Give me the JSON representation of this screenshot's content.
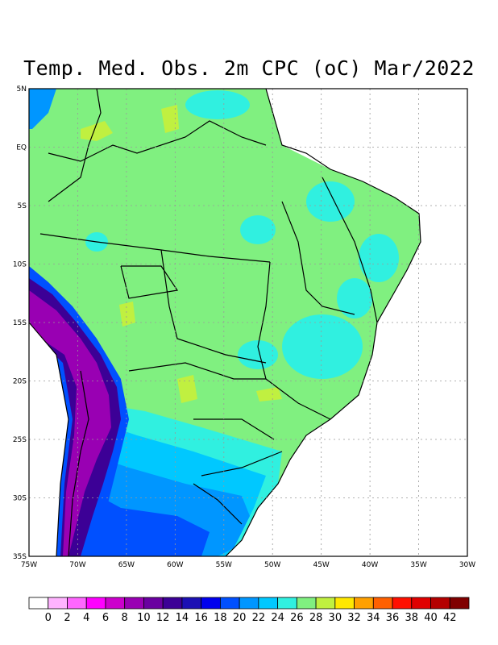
{
  "title": "Temp. Med. Obs. 2m CPC (oC) Mar/2022",
  "map": {
    "lat_labels": [
      "5N",
      "EQ",
      "5S",
      "10S",
      "15S",
      "20S",
      "25S",
      "30S",
      "35S"
    ],
    "lon_labels": [
      "75W",
      "70W",
      "65W",
      "60W",
      "55W",
      "50W",
      "45W",
      "40W",
      "35W",
      "30W"
    ],
    "lat_range": [
      -35,
      5
    ],
    "lon_range": [
      -75,
      -30
    ],
    "grid": "dotted"
  },
  "colorbar": {
    "labels": [
      "0",
      "2",
      "4",
      "6",
      "8",
      "10",
      "12",
      "14",
      "16",
      "18",
      "20",
      "22",
      "24",
      "26",
      "28",
      "30",
      "32",
      "34",
      "36",
      "38",
      "40",
      "42"
    ],
    "colors": [
      "#ffffff",
      "#ffb3ff",
      "#ff66ff",
      "#ff00ff",
      "#cc00cc",
      "#9900b3",
      "#6a00a0",
      "#3c0096",
      "#1c10b4",
      "#0000ee",
      "#0050ff",
      "#0096ff",
      "#00c8ff",
      "#30f0e0",
      "#80f080",
      "#c0f040",
      "#ffe800",
      "#ffa000",
      "#ff6000",
      "#ff1000",
      "#e00000",
      "#b40000",
      "#800000"
    ]
  }
}
